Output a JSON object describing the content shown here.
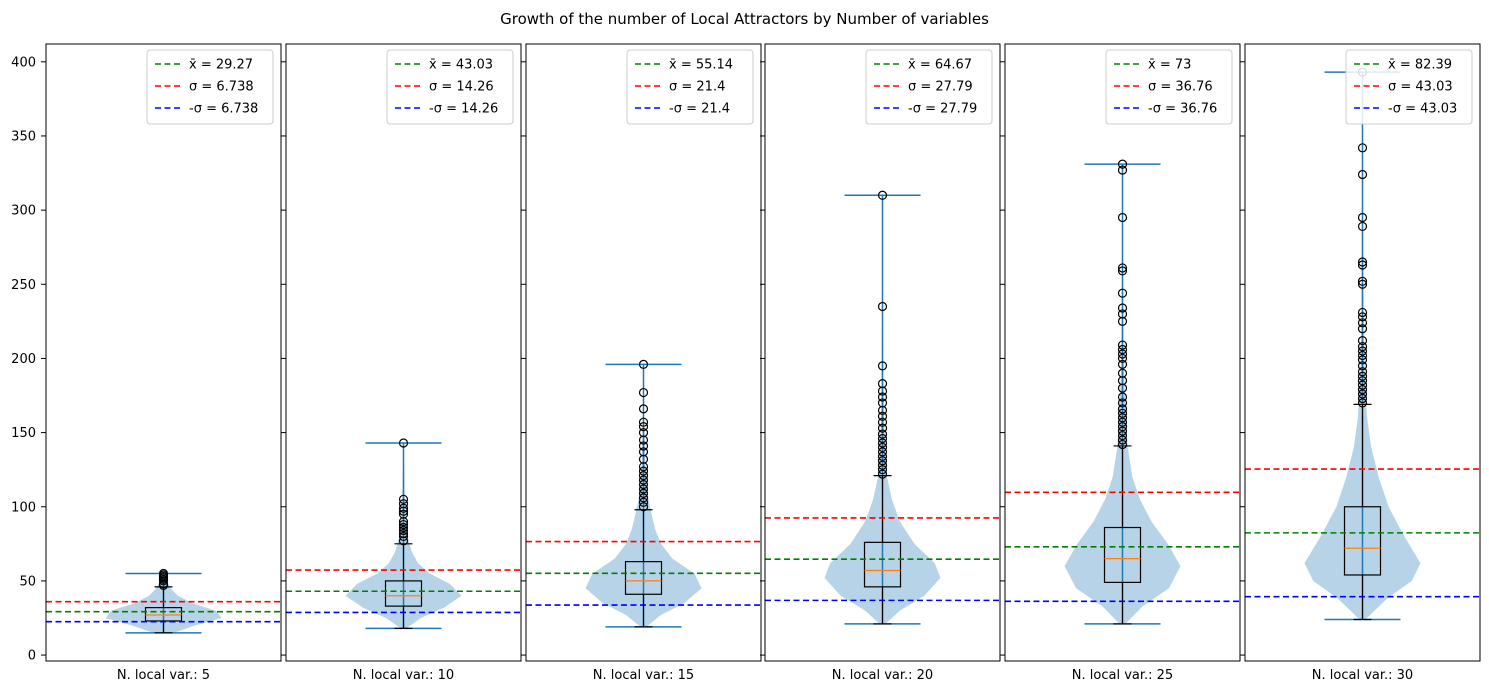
{
  "title": "Growth of the number of Local Attractors by Number of variables",
  "chart_data": {
    "type": "violin",
    "title": "Growth of the number of Local Attractors by Number of variables",
    "ylim": [
      -4,
      412
    ],
    "yticks": [
      0,
      50,
      100,
      150,
      200,
      250,
      300,
      350,
      400
    ],
    "legend_loc": "upper right",
    "colors": {
      "mean": "#008000",
      "sigma_plus": "#ff0000",
      "sigma_minus": "#0000ff",
      "violin": "#1f77b4",
      "median": "#ff7f0e",
      "box": "#000000"
    },
    "panels": [
      {
        "label": "N. local var.: 5",
        "mean": 29.27,
        "sigma": 6.738,
        "mean_label": "x̄ = 29.27",
        "sigma_label": "σ = 6.738",
        "neg_sigma_label": "-σ = 6.738",
        "min": 15,
        "max": 55,
        "q1": 23,
        "median": 27,
        "q3": 32,
        "whisker_low": 15,
        "whisker_high": 46,
        "density": [
          [
            15,
            0.18
          ],
          [
            20,
            0.55
          ],
          [
            25,
            1.0
          ],
          [
            30,
            0.9
          ],
          [
            35,
            0.5
          ],
          [
            40,
            0.25
          ],
          [
            45,
            0.12
          ],
          [
            50,
            0.06
          ],
          [
            55,
            0.02
          ]
        ],
        "fliers": [
          47,
          48,
          50,
          51,
          52,
          53,
          54,
          55
        ]
      },
      {
        "label": "N. local var.: 10",
        "mean": 43.03,
        "sigma": 14.26,
        "mean_label": "x̄ = 43.03",
        "sigma_label": "σ = 14.26",
        "neg_sigma_label": "-σ = 14.26",
        "min": 18,
        "max": 143,
        "q1": 33,
        "median": 40,
        "q3": 50,
        "whisker_low": 18,
        "whisker_high": 75,
        "density": [
          [
            18,
            0.05
          ],
          [
            25,
            0.3
          ],
          [
            32,
            0.7
          ],
          [
            40,
            1.0
          ],
          [
            48,
            0.8
          ],
          [
            55,
            0.45
          ],
          [
            62,
            0.25
          ],
          [
            70,
            0.14
          ],
          [
            80,
            0.07
          ],
          [
            90,
            0.04
          ],
          [
            105,
            0.02
          ],
          [
            125,
            0.01
          ],
          [
            143,
            0.0
          ]
        ],
        "fliers": [
          77,
          80,
          82,
          84,
          86,
          88,
          90,
          95,
          97,
          99,
          102,
          105,
          143
        ]
      },
      {
        "label": "N. local var.: 15",
        "mean": 55.14,
        "sigma": 21.4,
        "mean_label": "x̄ = 55.14",
        "sigma_label": "σ = 21.4",
        "neg_sigma_label": "-σ = 21.4",
        "min": 19,
        "max": 196,
        "q1": 41,
        "median": 50,
        "q3": 63,
        "whisker_low": 19,
        "whisker_high": 98,
        "density": [
          [
            19,
            0.05
          ],
          [
            27,
            0.3
          ],
          [
            35,
            0.7
          ],
          [
            45,
            1.0
          ],
          [
            55,
            0.88
          ],
          [
            65,
            0.5
          ],
          [
            75,
            0.3
          ],
          [
            85,
            0.2
          ],
          [
            95,
            0.14
          ],
          [
            110,
            0.06
          ],
          [
            130,
            0.03
          ],
          [
            160,
            0.01
          ],
          [
            196,
            0.0
          ]
        ],
        "fliers": [
          100,
          103,
          106,
          109,
          112,
          115,
          118,
          121,
          124,
          127,
          132,
          137,
          141,
          145,
          150,
          154,
          157,
          166,
          177,
          196
        ]
      },
      {
        "label": "N. local var.: 20",
        "mean": 64.67,
        "sigma": 27.79,
        "mean_label": "x̄ = 64.67",
        "sigma_label": "σ = 27.79",
        "neg_sigma_label": "-σ = 27.79",
        "min": 21,
        "max": 310,
        "q1": 46,
        "median": 57,
        "q3": 76,
        "whisker_low": 21,
        "whisker_high": 121,
        "density": [
          [
            21,
            0.05
          ],
          [
            30,
            0.3
          ],
          [
            40,
            0.72
          ],
          [
            52,
            1.0
          ],
          [
            62,
            0.9
          ],
          [
            75,
            0.55
          ],
          [
            90,
            0.3
          ],
          [
            105,
            0.16
          ],
          [
            120,
            0.08
          ],
          [
            140,
            0.04
          ],
          [
            170,
            0.02
          ],
          [
            220,
            0.01
          ],
          [
            310,
            0.0
          ]
        ],
        "fliers": [
          122,
          125,
          128,
          131,
          134,
          137,
          140,
          143,
          146,
          149,
          153,
          157,
          161,
          165,
          170,
          174,
          178,
          183,
          195,
          235,
          310
        ]
      },
      {
        "label": "N. local var.: 25",
        "mean": 73,
        "sigma": 36.76,
        "mean_label": "x̄ = 73",
        "sigma_label": "σ = 36.76",
        "neg_sigma_label": "-σ = 36.76",
        "min": 21,
        "max": 331,
        "q1": 49,
        "median": 65,
        "q3": 86,
        "whisker_low": 21,
        "whisker_high": 141,
        "density": [
          [
            21,
            0.05
          ],
          [
            33,
            0.35
          ],
          [
            45,
            0.8
          ],
          [
            60,
            1.0
          ],
          [
            75,
            0.78
          ],
          [
            90,
            0.5
          ],
          [
            105,
            0.3
          ],
          [
            120,
            0.17
          ],
          [
            140,
            0.09
          ],
          [
            165,
            0.05
          ],
          [
            200,
            0.02
          ],
          [
            260,
            0.01
          ],
          [
            331,
            0.0
          ]
        ],
        "fliers": [
          142,
          145,
          148,
          151,
          154,
          157,
          160,
          163,
          166,
          170,
          174,
          180,
          185,
          190,
          196,
          200,
          203,
          206,
          209,
          225,
          230,
          234,
          244,
          259,
          261,
          295,
          327,
          331
        ]
      },
      {
        "label": "N. local var.: 30",
        "mean": 82.39,
        "sigma": 43.03,
        "mean_label": "x̄ = 82.39",
        "sigma_label": "σ = 43.03",
        "neg_sigma_label": "-σ = 43.03",
        "min": 24,
        "max": 393,
        "q1": 54,
        "median": 72,
        "q3": 100,
        "whisker_low": 24,
        "whisker_high": 169,
        "density": [
          [
            24,
            0.05
          ],
          [
            38,
            0.42
          ],
          [
            50,
            0.85
          ],
          [
            62,
            1.0
          ],
          [
            80,
            0.72
          ],
          [
            100,
            0.45
          ],
          [
            120,
            0.28
          ],
          [
            140,
            0.15
          ],
          [
            160,
            0.08
          ],
          [
            185,
            0.04
          ],
          [
            220,
            0.02
          ],
          [
            300,
            0.01
          ],
          [
            393,
            0.0
          ]
        ],
        "fliers": [
          170,
          173,
          176,
          179,
          182,
          185,
          188,
          191,
          195,
          199,
          202,
          205,
          208,
          212,
          220,
          224,
          228,
          231,
          250,
          252,
          263,
          265,
          289,
          295,
          324,
          342,
          393
        ]
      }
    ]
  }
}
